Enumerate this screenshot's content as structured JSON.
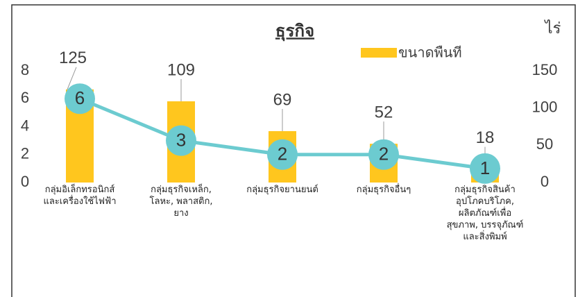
{
  "chart_data": {
    "type": "bar_line",
    "title": "ธุรกิจ",
    "y2_label": "ไร่",
    "categories": [
      "กลุ่มอิเล็กทรอนิกส์\nและเครื่องใช้ไฟฟ้า",
      "กลุ่มธุรกิจเหล็ก,\nโลหะ, พลาสติก,\nยาง",
      "กลุ่มธุรกิจยานยนต์",
      "กลุ่มธุรกิจอื่นๆ",
      "กลุ่มธุรกิจสินค้า\nอุปโภคบริโภค,\nผลิตภัณฑ์เพื่อ\nสุขภาพ, บรรจุภัณฑ์\nและสิ่งพิมพ์"
    ],
    "series": [
      {
        "name": "ขนาดพืนที",
        "type": "bar",
        "axis": "y2",
        "color": "#ffc61e",
        "values": [
          125,
          109,
          69,
          52,
          18
        ]
      },
      {
        "type": "line",
        "axis": "y",
        "color": "#6ccbd0",
        "values": [
          6,
          3,
          2,
          2,
          1
        ]
      }
    ],
    "ylim": [
      0,
      8
    ],
    "yticks": [
      0,
      2,
      4,
      6,
      8
    ],
    "y2lim": [
      0,
      150
    ],
    "y2ticks": [
      0,
      50,
      100,
      150
    ],
    "legend": "top-right"
  }
}
